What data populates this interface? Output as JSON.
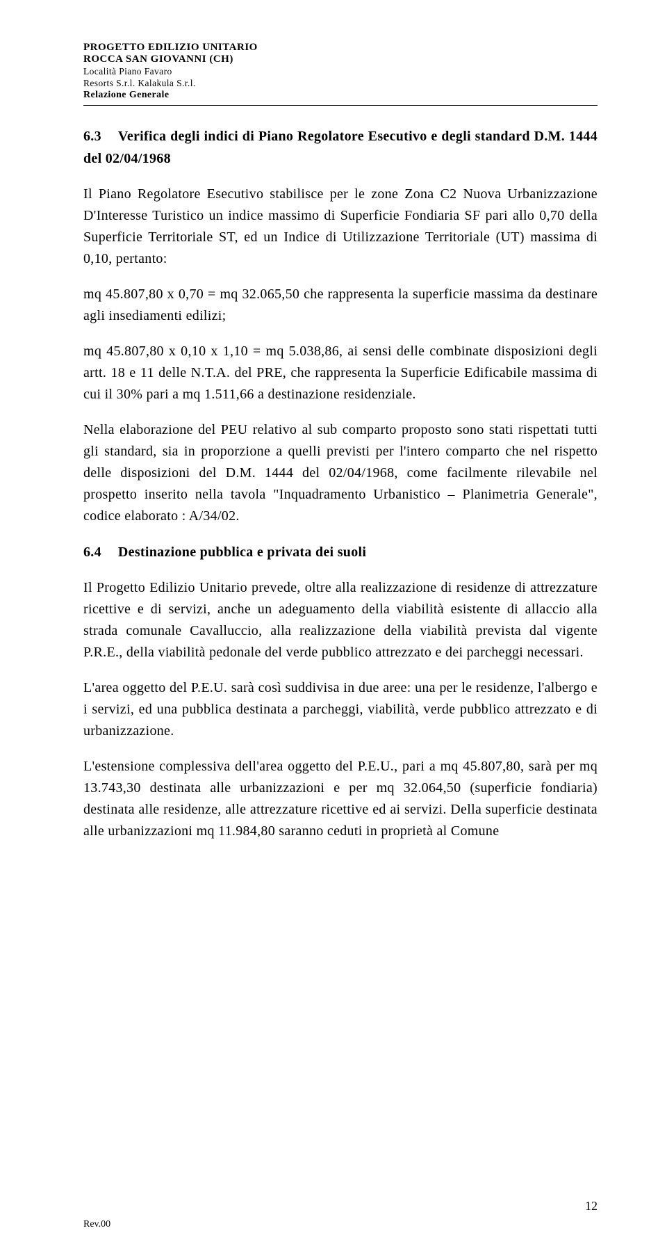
{
  "header": {
    "line1": "PROGETTO EDILIZIO UNITARIO",
    "line2": "ROCCA SAN GIOVANNI (CH)",
    "line3": "Località Piano Favaro",
    "line4": "Resorts S.r.l. Kalakula S.r.l.",
    "line5": "Relazione Generale"
  },
  "section63": {
    "number": "6.3",
    "title": "Verifica degli indici di Piano Regolatore Esecutivo e degli standard D.M. 1444 del 02/04/1968"
  },
  "para1": "Il Piano Regolatore Esecutivo stabilisce per le zone Zona C2 Nuova Urbanizzazione D'Interesse Turistico un indice massimo di Superficie Fondiaria SF pari allo 0,70 della Superficie Territoriale ST, ed un Indice di Utilizzazione Territoriale (UT) massima di 0,10, pertanto:",
  "para2": "mq 45.807,80 x 0,70 = mq 32.065,50 che rappresenta la superficie massima da destinare agli insediamenti edilizi;",
  "para3": "mq 45.807,80 x 0,10 x 1,10 = mq 5.038,86, ai sensi delle combinate disposizioni degli artt. 18 e 11 delle N.T.A. del PRE, che rappresenta la Superficie Edificabile massima di cui il 30% pari a mq 1.511,66 a destinazione residenziale.",
  "para4": "Nella elaborazione del PEU relativo al sub comparto proposto sono stati rispettati tutti gli standard, sia in proporzione a quelli previsti per l'intero comparto che nel rispetto delle disposizioni del D.M. 1444 del 02/04/1968, come facilmente rilevabile nel prospetto inserito nella tavola \"Inquadramento Urbanistico – Planimetria Generale\", codice elaborato : A/34/02.",
  "section64": {
    "number": "6.4",
    "title": "Destinazione pubblica e privata dei suoli"
  },
  "para5": "Il Progetto Edilizio Unitario prevede, oltre alla realizzazione di residenze di attrezzature ricettive e di servizi, anche un adeguamento della viabilità esistente di allaccio alla strada comunale Cavalluccio, alla realizzazione della viabilità prevista dal vigente P.R.E., della viabilità pedonale del verde pubblico attrezzato e dei parcheggi necessari.",
  "para6": "L'area oggetto del P.E.U. sarà così suddivisa in due aree: una per le residenze, l'albergo e i servizi, ed una pubblica destinata a parcheggi, viabilità, verde pubblico attrezzato e di urbanizzazione.",
  "para7": "L'estensione complessiva dell'area oggetto del P.E.U., pari a mq 45.807,80, sarà per mq 13.743,30 destinata alle urbanizzazioni e per mq 32.064,50 (superficie fondiaria) destinata alle residenze, alle attrezzature ricettive ed ai servizi. Della superficie destinata alle urbanizzazioni mq 11.984,80 saranno ceduti in proprietà al Comune",
  "footer": {
    "pageNumber": "12",
    "revLabel": "Rev.00"
  }
}
